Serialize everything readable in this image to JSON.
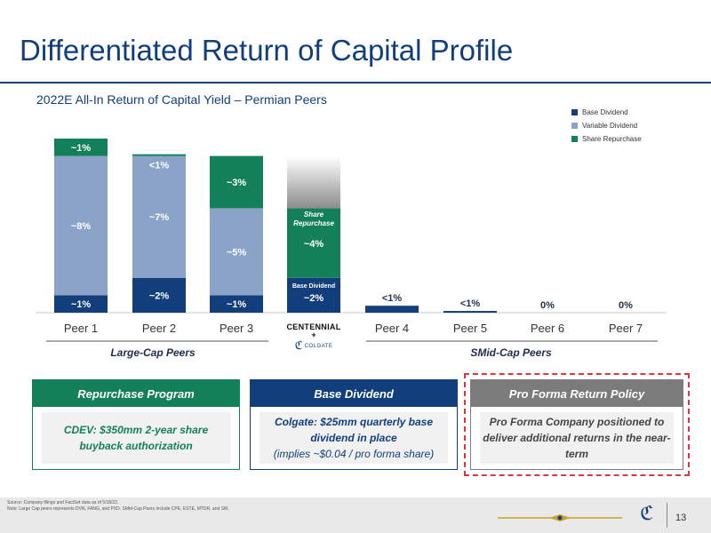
{
  "slide": {
    "title": "Differentiated Return of Capital Profile",
    "page_number": "13"
  },
  "legend": {
    "items": [
      {
        "label": "Base Dividend",
        "color": "#123f7c"
      },
      {
        "label": "Variable Dividend",
        "color": "#8aa3c6"
      },
      {
        "label": "Share Repurchase",
        "color": "#14805a"
      }
    ]
  },
  "chart_data": {
    "type": "bar",
    "title": "2022E All-In Return of Capital Yield – Permian Peers",
    "categories": [
      "Peer 1",
      "Peer 2",
      "Peer 3",
      "",
      "Peer 4",
      "Peer 5",
      "Peer 6",
      "Peer 7"
    ],
    "series": [
      {
        "name": "Base Dividend",
        "color": "#123f7c",
        "values": [
          1,
          2,
          1,
          2,
          0.4,
          0.1,
          0,
          0
        ]
      },
      {
        "name": "Variable Dividend",
        "color": "#8aa3c6",
        "values": [
          8,
          7,
          5,
          0,
          0,
          0,
          0,
          0
        ]
      },
      {
        "name": "Share Repurchase",
        "color": "#14805a",
        "values": [
          1,
          0.1,
          3,
          4,
          0,
          0,
          0,
          0
        ]
      }
    ],
    "data_labels": {
      "base": [
        "~1%",
        "~2%",
        "~1%",
        "~2%",
        "<1%",
        "<1%",
        "0%",
        "0%"
      ],
      "variable": [
        "~8%",
        "~7%",
        "~5%",
        "",
        "",
        "",
        "",
        ""
      ],
      "repurchase": [
        "~1%",
        "<1%",
        "~3%",
        "~4%",
        "",
        "",
        "",
        ""
      ]
    },
    "segment_notes": {
      "pro_forma_repurchase": "Share Repurchase",
      "pro_forma_base": "Base Dividend"
    },
    "groups": [
      {
        "label": "Large-Cap Peers"
      },
      {
        "label": "SMid-Cap Peers"
      }
    ],
    "pro_forma_logo": {
      "top": "CENTENNIAL",
      "plus": "+",
      "bottom": "COLGATE"
    }
  },
  "boxes": [
    {
      "header": "Repurchase Program",
      "color": "#14805a",
      "line1": "CDEV: $350mm 2-year share buyback authorization",
      "line2": ""
    },
    {
      "header": "Base Dividend",
      "color": "#123f7c",
      "line1": "Colgate: $25mm quarterly base dividend in place",
      "line2": "(implies ~$0.04 / pro forma share)"
    },
    {
      "header": "Pro Forma Return Policy",
      "color": "#7b7b7b",
      "line1": "Pro Forma Company positioned to deliver additional returns in the near-term",
      "line2": ""
    }
  ],
  "footnotes": {
    "source": "Source: Company filings and FactSet data as of 5/18/22.",
    "note": "Note: Large Cap peers represents DVN, FANG, and PXD. SMid-Cap Peers include CPE, ESTE, MTDR, and SM."
  }
}
